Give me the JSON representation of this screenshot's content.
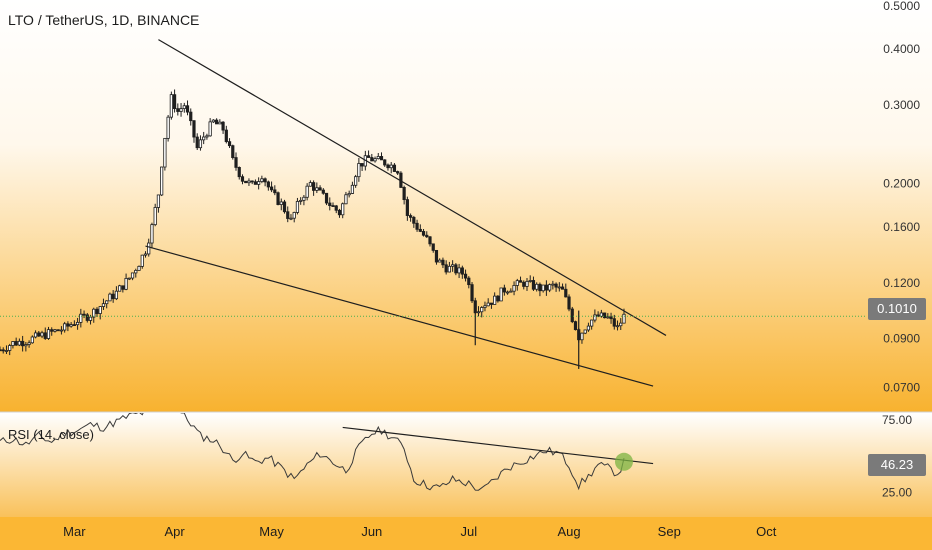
{
  "header": {
    "title": "LTO / TetherUS, 1D, BINANCE"
  },
  "rsi_panel": {
    "label": "RSI (14, close)",
    "current_value": "46.23"
  },
  "colors": {
    "background_top": "#ffffff",
    "background_bottom": "#f7b02e",
    "candle": "#1f1f1f",
    "trendline": "#1f1f1f",
    "price_line": "#4caf50",
    "breakout_marker": "#7cb342"
  },
  "chart_data": {
    "type": "candlestick",
    "title": "LTO / TetherUS, 1D, BINANCE",
    "price_scale": "log",
    "ylim": [
      0.062,
      0.515
    ],
    "y_ticks": [
      "0.5000",
      "0.4000",
      "0.3000",
      "0.2000",
      "0.1600",
      "0.1200",
      "0.0900",
      "0.0700"
    ],
    "current_price": "0.1010",
    "x_ticks": [
      "Mar",
      "Apr",
      "May",
      "Jun",
      "Jul",
      "Aug",
      "Sep",
      "Oct"
    ],
    "x_tick_dates": [
      "2021-03-01",
      "2021-04-01",
      "2021-05-01",
      "2021-06-01",
      "2021-07-01",
      "2021-08-01",
      "2021-09-01",
      "2021-10-01"
    ],
    "xlim": [
      "2021-02-06",
      "2021-10-30"
    ],
    "price_series": [
      [
        "2021-02-06",
        0.085
      ],
      [
        "2021-02-10",
        0.088
      ],
      [
        "2021-02-14",
        0.089
      ],
      [
        "2021-02-18",
        0.091
      ],
      [
        "2021-02-22",
        0.093
      ],
      [
        "2021-02-26",
        0.095
      ],
      [
        "2021-03-02",
        0.099
      ],
      [
        "2021-03-06",
        0.102
      ],
      [
        "2021-03-10",
        0.108
      ],
      [
        "2021-03-14",
        0.114
      ],
      [
        "2021-03-18",
        0.123
      ],
      [
        "2021-03-21",
        0.133
      ],
      [
        "2021-03-23",
        0.142
      ],
      [
        "2021-03-25",
        0.16
      ],
      [
        "2021-03-27",
        0.19
      ],
      [
        "2021-03-29",
        0.255
      ],
      [
        "2021-03-31",
        0.31
      ],
      [
        "2021-04-02",
        0.29
      ],
      [
        "2021-04-04",
        0.3
      ],
      [
        "2021-04-06",
        0.27
      ],
      [
        "2021-04-08",
        0.24
      ],
      [
        "2021-04-10",
        0.255
      ],
      [
        "2021-04-13",
        0.275
      ],
      [
        "2021-04-16",
        0.265
      ],
      [
        "2021-04-19",
        0.225
      ],
      [
        "2021-04-22",
        0.205
      ],
      [
        "2021-04-25",
        0.198
      ],
      [
        "2021-04-28",
        0.21
      ],
      [
        "2021-05-01",
        0.19
      ],
      [
        "2021-05-04",
        0.18
      ],
      [
        "2021-05-07",
        0.165
      ],
      [
        "2021-05-10",
        0.185
      ],
      [
        "2021-05-13",
        0.2
      ],
      [
        "2021-05-16",
        0.19
      ],
      [
        "2021-05-19",
        0.18
      ],
      [
        "2021-05-22",
        0.172
      ],
      [
        "2021-05-25",
        0.195
      ],
      [
        "2021-05-28",
        0.22
      ],
      [
        "2021-05-31",
        0.228
      ],
      [
        "2021-06-03",
        0.225
      ],
      [
        "2021-06-06",
        0.222
      ],
      [
        "2021-06-09",
        0.215
      ],
      [
        "2021-06-12",
        0.17
      ],
      [
        "2021-06-15",
        0.16
      ],
      [
        "2021-06-18",
        0.15
      ],
      [
        "2021-06-21",
        0.135
      ],
      [
        "2021-06-24",
        0.13
      ],
      [
        "2021-06-27",
        0.128
      ],
      [
        "2021-06-30",
        0.125
      ],
      [
        "2021-07-03",
        0.105
      ],
      [
        "2021-07-06",
        0.108
      ],
      [
        "2021-07-09",
        0.11
      ],
      [
        "2021-07-12",
        0.116
      ],
      [
        "2021-07-15",
        0.118
      ],
      [
        "2021-07-18",
        0.12
      ],
      [
        "2021-07-21",
        0.118
      ],
      [
        "2021-07-24",
        0.116
      ],
      [
        "2021-07-27",
        0.118
      ],
      [
        "2021-07-30",
        0.115
      ],
      [
        "2021-08-02",
        0.1
      ],
      [
        "2021-08-04",
        0.091
      ],
      [
        "2021-08-07",
        0.098
      ],
      [
        "2021-08-10",
        0.101
      ],
      [
        "2021-08-13",
        0.1
      ],
      [
        "2021-08-16",
        0.095
      ],
      [
        "2021-08-18",
        0.101
      ]
    ],
    "trendlines": [
      {
        "from": [
          "2021-03-27",
          0.42
        ],
        "to": [
          "2021-08-31",
          0.0915
        ]
      },
      {
        "from": [
          "2021-03-23",
          0.145
        ],
        "to": [
          "2021-08-27",
          0.0705
        ]
      }
    ],
    "rsi": {
      "name": "RSI (14, close)",
      "ylim": [
        8,
        80
      ],
      "y_ticks": [
        "75.00",
        "25.00"
      ],
      "current": "46.23",
      "values": [
        [
          "2021-02-06",
          60
        ],
        [
          "2021-02-10",
          62
        ],
        [
          "2021-02-14",
          58
        ],
        [
          "2021-02-18",
          64
        ],
        [
          "2021-02-22",
          60
        ],
        [
          "2021-02-26",
          66
        ],
        [
          "2021-03-02",
          68
        ],
        [
          "2021-03-06",
          72
        ],
        [
          "2021-03-10",
          70
        ],
        [
          "2021-03-14",
          74
        ],
        [
          "2021-03-18",
          78
        ],
        [
          "2021-03-22",
          80
        ],
        [
          "2021-03-26",
          86
        ],
        [
          "2021-03-30",
          92
        ],
        [
          "2021-04-03",
          80
        ],
        [
          "2021-04-06",
          73
        ],
        [
          "2021-04-09",
          64
        ],
        [
          "2021-04-12",
          62
        ],
        [
          "2021-04-15",
          58
        ],
        [
          "2021-04-19",
          47
        ],
        [
          "2021-04-22",
          52
        ],
        [
          "2021-04-26",
          46
        ],
        [
          "2021-04-30",
          49
        ],
        [
          "2021-05-04",
          42
        ],
        [
          "2021-05-08",
          34
        ],
        [
          "2021-05-12",
          44
        ],
        [
          "2021-05-16",
          52
        ],
        [
          "2021-05-20",
          46
        ],
        [
          "2021-05-24",
          40
        ],
        [
          "2021-05-28",
          56
        ],
        [
          "2021-06-01",
          66
        ],
        [
          "2021-06-04",
          68
        ],
        [
          "2021-06-08",
          62
        ],
        [
          "2021-06-11",
          56
        ],
        [
          "2021-06-14",
          34
        ],
        [
          "2021-06-18",
          30
        ],
        [
          "2021-06-22",
          28
        ],
        [
          "2021-06-26",
          34
        ],
        [
          "2021-07-01",
          31
        ],
        [
          "2021-07-05",
          26
        ],
        [
          "2021-07-09",
          34
        ],
        [
          "2021-07-13",
          42
        ],
        [
          "2021-07-17",
          46
        ],
        [
          "2021-07-21",
          50
        ],
        [
          "2021-07-25",
          54
        ],
        [
          "2021-07-29",
          52
        ],
        [
          "2021-08-01",
          44
        ],
        [
          "2021-08-04",
          30
        ],
        [
          "2021-08-07",
          36
        ],
        [
          "2021-08-10",
          44
        ],
        [
          "2021-08-13",
          42
        ],
        [
          "2021-08-16",
          38
        ],
        [
          "2021-08-18",
          46
        ]
      ],
      "trendline": {
        "from": [
          "2021-05-23",
          70
        ],
        "to": [
          "2021-08-27",
          45
        ]
      },
      "breakout_marker": [
        "2021-08-18",
        46.23
      ]
    }
  }
}
